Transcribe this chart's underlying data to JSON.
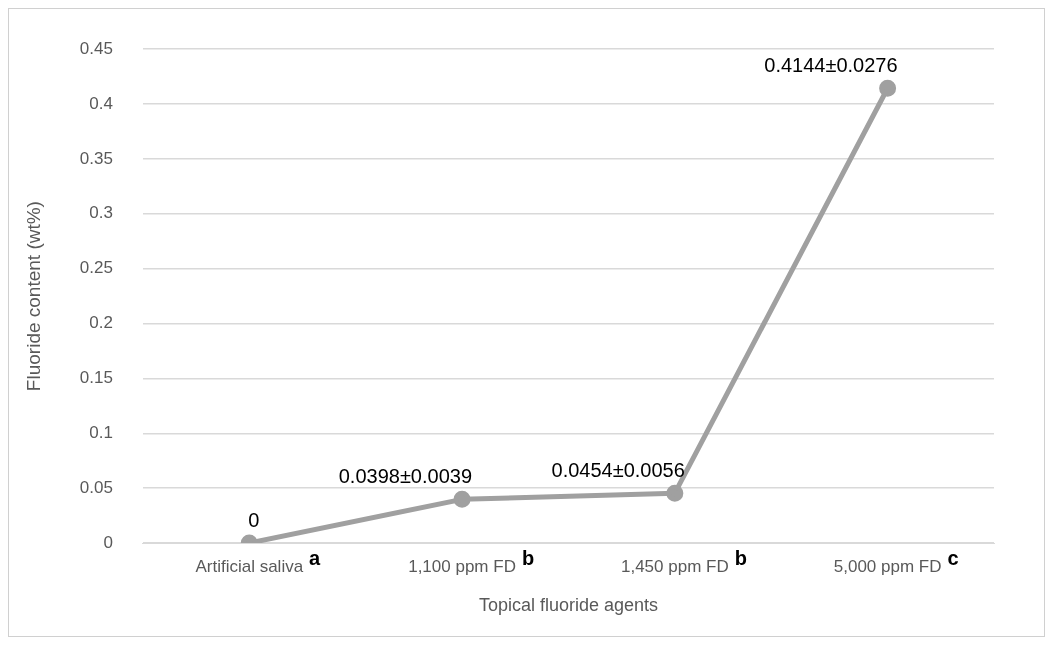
{
  "chart_data": {
    "type": "line",
    "xlabel": "Topical fluoride agents",
    "ylabel": "Fluoride content (wt%)",
    "categories": [
      "Artificial saliva",
      "1,100 ppm FD",
      "1,450 ppm FD",
      "5,000 ppm FD"
    ],
    "series": [
      {
        "color": "#a0a0a0",
        "values": [
          0,
          0.0398,
          0.0454,
          0.4144
        ],
        "value_labels": [
          "0",
          "0.0398±0.0039",
          "0.0454±0.0056",
          "0.4144±0.0276"
        ]
      }
    ],
    "ylim": [
      0,
      0.45
    ],
    "yticks": [
      0,
      0.05,
      0.1,
      0.15,
      0.2,
      0.25,
      0.3,
      0.35,
      0.4,
      0.45
    ],
    "grid": "y",
    "legend": false,
    "marker": "circle",
    "line_style": "solid",
    "annotations": [
      "a",
      "b",
      "b",
      "c"
    ]
  }
}
